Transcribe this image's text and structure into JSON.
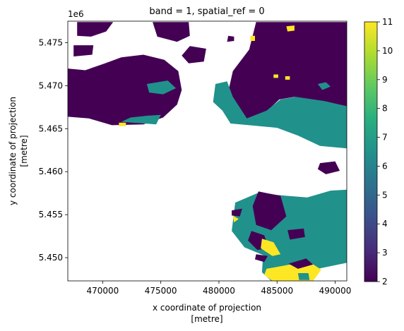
{
  "chart_data": {
    "type": "heatmap",
    "title": "band = 1, spatial_ref = 0",
    "xlabel": [
      "x coordinate of projection",
      "[metre]"
    ],
    "ylabel": [
      "y coordinate of projection",
      "[metre]"
    ],
    "y_offset_text": "1e6",
    "xlim": [
      467000,
      491000
    ],
    "ylim": [
      5447300,
      5477500
    ],
    "x_ticks": [
      {
        "value": 470000,
        "label": "470000"
      },
      {
        "value": 475000,
        "label": "475000"
      },
      {
        "value": 480000,
        "label": "480000"
      },
      {
        "value": 485000,
        "label": "485000"
      },
      {
        "value": 490000,
        "label": "490000"
      }
    ],
    "y_ticks": [
      {
        "value": 5450000,
        "label": "5.450"
      },
      {
        "value": 5455000,
        "label": "5.455"
      },
      {
        "value": 5460000,
        "label": "5.460"
      },
      {
        "value": 5465000,
        "label": "5.465"
      },
      {
        "value": 5470000,
        "label": "5.470"
      },
      {
        "value": 5475000,
        "label": "5.475"
      }
    ],
    "colorbar": {
      "colormap": "viridis",
      "range": [
        2,
        11
      ],
      "ticks": [
        {
          "value": 2,
          "label": "2"
        },
        {
          "value": 3,
          "label": "3"
        },
        {
          "value": 4,
          "label": "4"
        },
        {
          "value": 5,
          "label": "5"
        },
        {
          "value": 6,
          "label": "6"
        },
        {
          "value": 7,
          "label": "7"
        },
        {
          "value": 8,
          "label": "8"
        },
        {
          "value": 9,
          "label": "9"
        },
        {
          "value": 10,
          "label": "10"
        },
        {
          "value": 11,
          "label": "11"
        }
      ],
      "stops": [
        "#440154",
        "#472d7b",
        "#3b528b",
        "#2c728e",
        "#21918c",
        "#28ae80",
        "#5ec962",
        "#addc30",
        "#fde725"
      ]
    },
    "value_colors": {
      "2": "#440154",
      "7": "#21918c",
      "11": "#fde725"
    },
    "regions": [
      {
        "value": 2,
        "points": [
          [
            466900,
            5466400
          ],
          [
            468800,
            5466200
          ],
          [
            470800,
            5465400
          ],
          [
            473500,
            5465500
          ],
          [
            475200,
            5466300
          ],
          [
            476400,
            5467800
          ],
          [
            476800,
            5469500
          ],
          [
            476500,
            5471700
          ],
          [
            475300,
            5473000
          ],
          [
            473500,
            5473600
          ],
          [
            471600,
            5473300
          ],
          [
            470200,
            5472600
          ],
          [
            468500,
            5471800
          ],
          [
            466900,
            5472000
          ]
        ]
      },
      {
        "value": 2,
        "points": [
          [
            467800,
            5477400
          ],
          [
            470900,
            5477400
          ],
          [
            470300,
            5476300
          ],
          [
            469000,
            5475700
          ],
          [
            467800,
            5475800
          ]
        ]
      },
      {
        "value": 2,
        "points": [
          [
            467500,
            5474700
          ],
          [
            469200,
            5474700
          ],
          [
            469100,
            5473600
          ],
          [
            467500,
            5473400
          ]
        ]
      },
      {
        "value": 2,
        "points": [
          [
            474300,
            5477400
          ],
          [
            477400,
            5477400
          ],
          [
            477500,
            5475800
          ],
          [
            476400,
            5475100
          ],
          [
            474700,
            5475700
          ]
        ]
      },
      {
        "value": 2,
        "points": [
          [
            477500,
            5474600
          ],
          [
            478900,
            5474300
          ],
          [
            478700,
            5472800
          ],
          [
            477400,
            5472600
          ],
          [
            476800,
            5473500
          ]
        ]
      },
      {
        "value": 2,
        "points": [
          [
            480800,
            5475800
          ],
          [
            481300,
            5475700
          ],
          [
            481300,
            5475200
          ],
          [
            480700,
            5475100
          ]
        ]
      },
      {
        "value": 2,
        "points": [
          [
            483200,
            5477400
          ],
          [
            491000,
            5477400
          ],
          [
            491000,
            5467600
          ],
          [
            489000,
            5468200
          ],
          [
            486500,
            5468700
          ],
          [
            485200,
            5468400
          ],
          [
            484100,
            5467000
          ],
          [
            482600,
            5466000
          ],
          [
            481200,
            5466700
          ],
          [
            480700,
            5468700
          ],
          [
            481200,
            5471700
          ],
          [
            482600,
            5474200
          ]
        ]
      },
      {
        "value": 7,
        "points": [
          [
            479700,
            5470200
          ],
          [
            480700,
            5470500
          ],
          [
            481200,
            5468700
          ],
          [
            482400,
            5466200
          ],
          [
            484100,
            5467100
          ],
          [
            485300,
            5468400
          ],
          [
            486600,
            5468700
          ],
          [
            489100,
            5468200
          ],
          [
            491000,
            5467600
          ],
          [
            491000,
            5462700
          ],
          [
            488700,
            5463000
          ],
          [
            486800,
            5464200
          ],
          [
            485000,
            5465100
          ],
          [
            482600,
            5465400
          ],
          [
            481000,
            5465600
          ],
          [
            480300,
            5467100
          ],
          [
            479500,
            5468100
          ]
        ]
      },
      {
        "value": 7,
        "points": [
          [
            473800,
            5470200
          ],
          [
            475600,
            5470600
          ],
          [
            476300,
            5469700
          ],
          [
            475200,
            5469000
          ],
          [
            474000,
            5469200
          ]
        ]
      },
      {
        "value": 7,
        "points": [
          [
            471600,
            5465800
          ],
          [
            474600,
            5465500
          ],
          [
            475000,
            5466600
          ],
          [
            473800,
            5466500
          ],
          [
            472400,
            5466300
          ]
        ]
      },
      {
        "value": 2,
        "points": [
          [
            488700,
            5461000
          ],
          [
            490000,
            5461200
          ],
          [
            490400,
            5460100
          ],
          [
            489200,
            5459700
          ],
          [
            488500,
            5460300
          ]
        ]
      },
      {
        "value": 7,
        "points": [
          [
            481400,
            5456400
          ],
          [
            483300,
            5457500
          ],
          [
            485800,
            5457200
          ],
          [
            487600,
            5457000
          ],
          [
            489600,
            5457800
          ],
          [
            491000,
            5457900
          ],
          [
            491000,
            5449400
          ],
          [
            488500,
            5448700
          ],
          [
            486200,
            5447300
          ],
          [
            484500,
            5447300
          ],
          [
            483700,
            5448300
          ],
          [
            483800,
            5450300
          ],
          [
            482200,
            5451200
          ],
          [
            481100,
            5453100
          ]
        ]
      },
      {
        "value": 2,
        "points": [
          [
            483400,
            5457700
          ],
          [
            485300,
            5457200
          ],
          [
            485800,
            5454800
          ],
          [
            484500,
            5453200
          ],
          [
            483200,
            5453800
          ],
          [
            482900,
            5456000
          ]
        ]
      },
      {
        "value": 2,
        "points": [
          [
            485900,
            5453200
          ],
          [
            487300,
            5453400
          ],
          [
            487400,
            5452400
          ],
          [
            486100,
            5452100
          ]
        ]
      },
      {
        "value": 2,
        "points": [
          [
            482800,
            5453100
          ],
          [
            483900,
            5452600
          ],
          [
            484300,
            5451100
          ],
          [
            483300,
            5450900
          ],
          [
            482500,
            5452000
          ]
        ]
      },
      {
        "value": 11,
        "points": [
          [
            483700,
            5452200
          ],
          [
            484700,
            5451800
          ],
          [
            485300,
            5450400
          ],
          [
            484600,
            5450200
          ],
          [
            483600,
            5451100
          ]
        ]
      },
      {
        "value": 11,
        "points": [
          [
            484100,
            5448700
          ],
          [
            487700,
            5449600
          ],
          [
            488800,
            5448600
          ],
          [
            488100,
            5447300
          ],
          [
            484600,
            5447300
          ],
          [
            483900,
            5448000
          ]
        ]
      },
      {
        "value": 2,
        "points": [
          [
            486000,
            5449300
          ],
          [
            487500,
            5449900
          ],
          [
            488100,
            5449200
          ],
          [
            486800,
            5448700
          ]
        ]
      },
      {
        "value": 7,
        "points": [
          [
            486800,
            5448200
          ],
          [
            487700,
            5448200
          ],
          [
            487800,
            5447400
          ],
          [
            486900,
            5447400
          ]
        ]
      },
      {
        "value": 2,
        "points": [
          [
            483200,
            5450400
          ],
          [
            484200,
            5450200
          ],
          [
            483900,
            5449500
          ],
          [
            483100,
            5449800
          ]
        ]
      },
      {
        "value": 2,
        "points": [
          [
            481100,
            5455500
          ],
          [
            482000,
            5455700
          ],
          [
            481800,
            5454800
          ],
          [
            481100,
            5454900
          ]
        ]
      },
      {
        "value": 11,
        "points": [
          [
            481200,
            5454900
          ],
          [
            481700,
            5454500
          ],
          [
            481300,
            5454100
          ]
        ]
      },
      {
        "value": 11,
        "points": [
          [
            482700,
            5475800
          ],
          [
            483100,
            5475800
          ],
          [
            483100,
            5475200
          ],
          [
            482700,
            5475200
          ]
        ]
      },
      {
        "value": 11,
        "points": [
          [
            485800,
            5476900
          ],
          [
            486500,
            5477000
          ],
          [
            486500,
            5476400
          ],
          [
            485900,
            5476300
          ]
        ]
      },
      {
        "value": 11,
        "points": [
          [
            484700,
            5471300
          ],
          [
            485100,
            5471300
          ],
          [
            485100,
            5470900
          ],
          [
            484700,
            5470900
          ]
        ]
      },
      {
        "value": 11,
        "points": [
          [
            485700,
            5471100
          ],
          [
            486100,
            5471100
          ],
          [
            486100,
            5470700
          ],
          [
            485700,
            5470700
          ]
        ]
      },
      {
        "value": 11,
        "points": [
          [
            471400,
            5465700
          ],
          [
            472000,
            5465700
          ],
          [
            472000,
            5465300
          ],
          [
            471400,
            5465300
          ]
        ]
      },
      {
        "value": 7,
        "points": [
          [
            488500,
            5470200
          ],
          [
            489200,
            5470400
          ],
          [
            489600,
            5469900
          ],
          [
            488900,
            5469500
          ]
        ]
      }
    ]
  }
}
